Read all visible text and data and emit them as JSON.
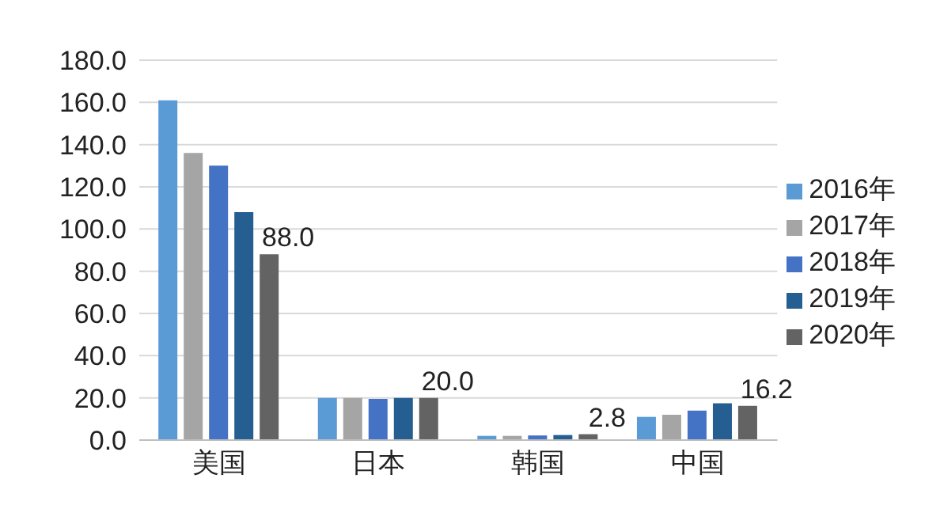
{
  "chart_data": {
    "type": "bar",
    "categories": [
      "美国",
      "日本",
      "韩国",
      "中国"
    ],
    "series": [
      {
        "name": "2016年",
        "color": "#5b9bd5",
        "values": [
          161,
          20,
          2.0,
          11
        ]
      },
      {
        "name": "2017年",
        "color": "#a5a5a5",
        "values": [
          136,
          20,
          2.0,
          12
        ]
      },
      {
        "name": "2018年",
        "color": "#4472c4",
        "values": [
          130,
          19.5,
          2.2,
          14
        ]
      },
      {
        "name": "2019年",
        "color": "#255e91",
        "values": [
          108,
          20,
          2.4,
          17.4
        ]
      },
      {
        "name": "2020年",
        "color": "#636363",
        "values": [
          88.0,
          20.0,
          2.8,
          16.2
        ],
        "value_labels": [
          "88.0",
          "20.0",
          "2.8",
          "16.2"
        ]
      }
    ],
    "ylim": [
      0,
      180
    ],
    "yticks": [
      {
        "value": 0,
        "label": "0.0"
      },
      {
        "value": 20,
        "label": "20.0"
      },
      {
        "value": 40,
        "label": "40.0"
      },
      {
        "value": 60,
        "label": "60.0"
      },
      {
        "value": 80,
        "label": "80.0"
      },
      {
        "value": 100,
        "label": "100.0"
      },
      {
        "value": 120,
        "label": "120.0"
      },
      {
        "value": 140,
        "label": "140.0"
      },
      {
        "value": 160,
        "label": "160.0"
      },
      {
        "value": 180,
        "label": "180.0"
      }
    ],
    "grid": "y",
    "legend": "right"
  }
}
